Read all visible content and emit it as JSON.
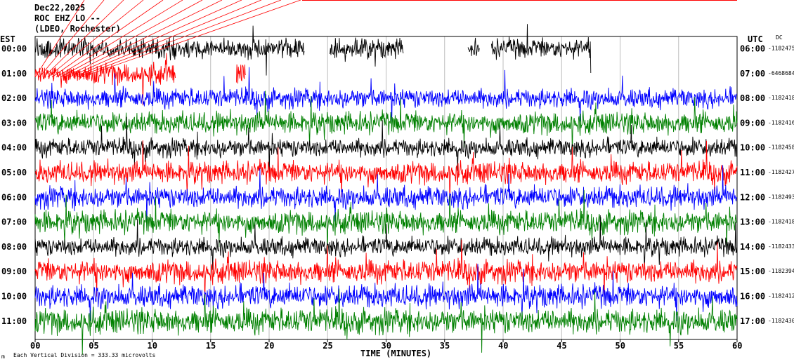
{
  "header": {
    "date": "Dec22,2025",
    "station": "ROC EHZ LO --",
    "network": "(LDEO, Rochester)",
    "left_tz": "EST",
    "right_tz": "UTC",
    "dc_label": "DC"
  },
  "footer": {
    "xlabel": "TIME (MINUTES)",
    "scale_note": "Each Vertical Division =  333.33 microvolts",
    "corner_mark": "m"
  },
  "chart_data": {
    "type": "line",
    "title": "",
    "xlabel": "TIME (MINUTES)",
    "xlim": [
      0,
      60
    ],
    "x_ticks": [
      0,
      5,
      10,
      15,
      20,
      25,
      30,
      35,
      40,
      45,
      50,
      55,
      60
    ],
    "x_tick_labels": [
      "00",
      "05",
      "10",
      "15",
      "20",
      "25",
      "30",
      "35",
      "40",
      "45",
      "50",
      "55",
      "60"
    ],
    "trace_color_cycle": [
      "#000000",
      "#ff0000",
      "#0000ff",
      "#008000"
    ],
    "rows": [
      {
        "est": "00:00",
        "utc": "06:00",
        "offset": "-1182475",
        "color": "#000000",
        "amp": 0.9,
        "segments": [
          [
            0,
            23
          ],
          [
            25.2,
            31.5
          ],
          [
            37,
            38
          ],
          [
            39,
            47.5
          ]
        ]
      },
      {
        "est": "01:00",
        "utc": "07:00",
        "offset": "-6468684",
        "color": "#ff0000",
        "amp": 0.95,
        "segments": [
          [
            0,
            12
          ],
          [
            17.2,
            18
          ]
        ]
      },
      {
        "est": "02:00",
        "utc": "08:00",
        "offset": "-1182418",
        "color": "#0000ff",
        "amp": 0.9,
        "segments": [
          [
            0,
            60
          ]
        ]
      },
      {
        "est": "03:00",
        "utc": "09:00",
        "offset": "-1182416",
        "color": "#008000",
        "amp": 1.0,
        "segments": [
          [
            0,
            60
          ]
        ]
      },
      {
        "est": "04:00",
        "utc": "10:00",
        "offset": "-1182458",
        "color": "#000000",
        "amp": 0.85,
        "segments": [
          [
            0,
            60
          ]
        ]
      },
      {
        "est": "05:00",
        "utc": "11:00",
        "offset": "-1182427",
        "color": "#ff0000",
        "amp": 1.0,
        "segments": [
          [
            0,
            60
          ]
        ]
      },
      {
        "est": "06:00",
        "utc": "12:00",
        "offset": "-1182493",
        "color": "#0000ff",
        "amp": 1.0,
        "segments": [
          [
            0,
            60
          ]
        ]
      },
      {
        "est": "07:00",
        "utc": "13:00",
        "offset": "-1182418",
        "color": "#008000",
        "amp": 1.05,
        "segments": [
          [
            0,
            60
          ]
        ]
      },
      {
        "est": "08:00",
        "utc": "14:00",
        "offset": "-1182433",
        "color": "#000000",
        "amp": 0.85,
        "segments": [
          [
            0,
            60
          ]
        ]
      },
      {
        "est": "09:00",
        "utc": "15:00",
        "offset": "-1182394",
        "color": "#ff0000",
        "amp": 1.05,
        "segments": [
          [
            0,
            60
          ]
        ]
      },
      {
        "est": "10:00",
        "utc": "16:00",
        "offset": "-1182412",
        "color": "#0000ff",
        "amp": 1.05,
        "segments": [
          [
            0,
            60
          ]
        ]
      },
      {
        "est": "11:00",
        "utc": "17:00",
        "offset": "-1182430",
        "color": "#008000",
        "amp": 1.15,
        "segments": [
          [
            0,
            60
          ]
        ]
      }
    ],
    "overlay": {
      "color": "#ff0000",
      "note": "red diagonal calibration lines at top-left"
    }
  }
}
